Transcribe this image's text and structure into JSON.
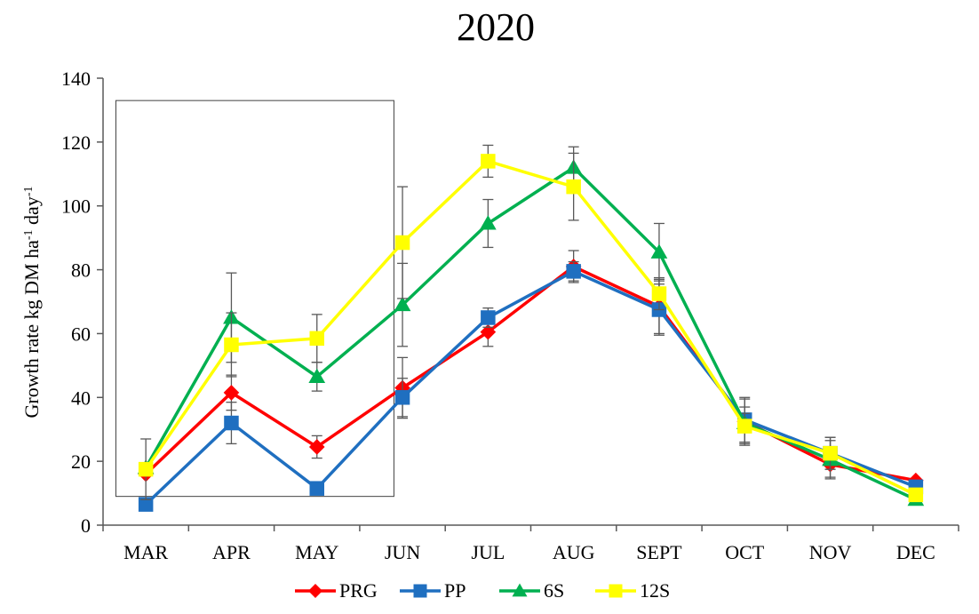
{
  "chart_data": {
    "type": "line",
    "title": "2020",
    "ylabel": "Growth rate kg DM ha",
    "ylabel_sup1": "-1",
    "ylabel_mid": " day",
    "ylabel_sup2": "-1",
    "ylim": [
      0,
      140
    ],
    "yticks": [
      "0",
      "20",
      "40",
      "60",
      "80",
      "100",
      "120",
      "140"
    ],
    "categories": [
      "MAR",
      "APR",
      "MAY",
      "JUN",
      "JUL",
      "AUG",
      "SEPT",
      "OCT",
      "NOV",
      "DEC"
    ],
    "grid": false,
    "legend_position": "bottom",
    "highlight_box": {
      "from_category": "MAR",
      "to_category": "JUN",
      "y_range": [
        9,
        133
      ]
    },
    "series": [
      {
        "name": "PRG",
        "color": "#ff0000",
        "marker": "diamond",
        "values": [
          16,
          41.5,
          24.5,
          43,
          60.5,
          81,
          68.5,
          32.5,
          19,
          14
        ],
        "error": [
          0,
          5.5,
          3.5,
          9.5,
          4.5,
          5,
          8.5,
          7,
          4,
          0
        ]
      },
      {
        "name": "PP",
        "color": "#1f6fc0",
        "marker": "square",
        "values": [
          6.5,
          32,
          11.5,
          40,
          65,
          79.5,
          67.5,
          33,
          22.5,
          12
        ],
        "error": [
          0,
          6.5,
          0,
          6,
          3,
          3,
          8,
          7,
          5,
          0
        ]
      },
      {
        "name": "6S",
        "color": "#00b050",
        "marker": "triangle",
        "values": [
          18,
          65,
          46.5,
          69,
          94.5,
          112,
          85.5,
          32,
          20.5,
          8
        ],
        "error": [
          0,
          14,
          4.5,
          13,
          7.5,
          6.5,
          9,
          3,
          6,
          0
        ]
      },
      {
        "name": "12S",
        "color": "#ffff00",
        "marker": "square",
        "values": [
          17.5,
          56.5,
          58.5,
          88.5,
          114,
          106,
          72.5,
          31,
          22.5,
          9.5
        ],
        "error": [
          9.5,
          10,
          7.5,
          17.5,
          5,
          10.5,
          5,
          6,
          5,
          0
        ]
      }
    ]
  }
}
